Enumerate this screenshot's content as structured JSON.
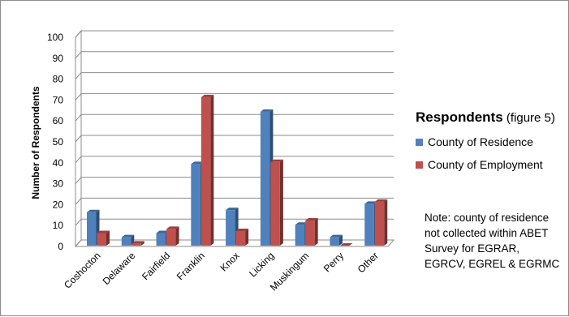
{
  "chart_data": {
    "type": "bar",
    "title": "",
    "ylabel": "Number of Respondents",
    "xlabel": "",
    "ylim": [
      0,
      100
    ],
    "yticks": [
      0,
      10,
      20,
      30,
      40,
      50,
      60,
      70,
      80,
      90,
      100
    ],
    "grid": true,
    "categories": [
      "Coshocton",
      "Delaware",
      "Fairfield",
      "Franklin",
      "Knox",
      "Licking",
      "Muskingum",
      "Perry",
      "Other"
    ],
    "series": [
      {
        "name": "County of Residence",
        "color": "#4f81bd",
        "values": [
          16,
          4,
          6,
          39,
          17,
          64,
          10,
          4,
          20
        ]
      },
      {
        "name": "County of Employment",
        "color": "#c0504d",
        "values": [
          6,
          1,
          8,
          71,
          7,
          40,
          12,
          0,
          21
        ]
      }
    ],
    "legend_position": "right"
  },
  "legend": {
    "title_bold": "Respondents",
    "title_rest": " (figure 5)",
    "items": [
      "County of Residence",
      "County of Employment"
    ]
  },
  "note": "Note: county of residence not collected within ABET Survey for EGRAR, EGRCV, EGREL & EGRMC"
}
